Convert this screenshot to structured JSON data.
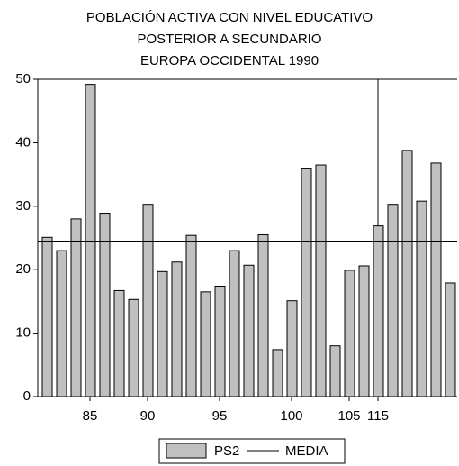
{
  "chart_data": {
    "type": "bar",
    "title": [
      "POBLACIÓN ACTIVA CON NIVEL EDUCATIVO",
      "POSTERIOR A SECUNDARIO",
      "EUROPA OCCIDENTAL 1990"
    ],
    "categories": [
      null,
      null,
      null,
      "85",
      null,
      null,
      null,
      "90",
      null,
      null,
      null,
      null,
      "95",
      null,
      null,
      null,
      null,
      "100",
      null,
      null,
      null,
      "105",
      null,
      "115",
      null,
      null,
      null,
      null,
      null
    ],
    "series": [
      {
        "name": "PS2",
        "color": "#c0c0c0",
        "values": [
          25.1,
          23.0,
          28.0,
          49.2,
          28.9,
          16.7,
          15.3,
          30.3,
          19.7,
          21.2,
          25.4,
          16.5,
          17.4,
          23.0,
          20.7,
          25.5,
          7.4,
          15.1,
          36.0,
          36.5,
          8.0,
          19.9,
          20.6,
          26.9,
          30.3,
          38.8,
          30.8,
          36.8,
          17.9
        ]
      }
    ],
    "reference_line": {
      "name": "MEDIA",
      "value": 24.5,
      "color": "#000000"
    },
    "ylim": [
      0,
      50
    ],
    "yticks": [
      0,
      10,
      20,
      30,
      40,
      50
    ]
  }
}
